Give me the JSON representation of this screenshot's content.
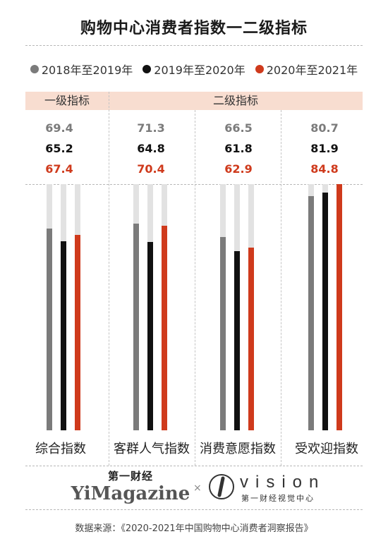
{
  "title": "购物中心消费者指数一二级指标",
  "legend": [
    {
      "label": "2018年至2019年",
      "color": "#7b7b7b"
    },
    {
      "label": "2019年至2020年",
      "color": "#111111"
    },
    {
      "label": "2020年至2021年",
      "color": "#cf3a1c"
    }
  ],
  "headers": {
    "level1": "一级指标",
    "level2": "二级指标"
  },
  "chart_data": {
    "type": "bar",
    "title": "购物中心消费者指数一二级指标",
    "categories": [
      "综合指数",
      "客群人气指数",
      "消费意愿指数",
      "受欢迎指数"
    ],
    "series": [
      {
        "name": "2018年至2019年",
        "color": "#7b7b7b",
        "values": [
          69.4,
          71.3,
          66.5,
          80.7
        ]
      },
      {
        "name": "2019年至2020年",
        "color": "#111111",
        "values": [
          65.2,
          64.8,
          61.8,
          81.9
        ]
      },
      {
        "name": "2020年至2021年",
        "color": "#cf3a1c",
        "values": [
          67.4,
          70.4,
          62.9,
          84.8
        ]
      }
    ],
    "value_labels": [
      [
        "69.4",
        "71.3",
        "66.5",
        "80.7"
      ],
      [
        "65.2",
        "64.8",
        "61.8",
        "81.9"
      ],
      [
        "67.4",
        "70.4",
        "62.9",
        "84.8"
      ]
    ],
    "ylim": [
      0,
      84.8
    ],
    "legend": "top"
  },
  "branding": {
    "logo_cn": "第一财经",
    "logo_en": "YiMagazine",
    "times": "×",
    "vision_word": "vision",
    "vision_sub": "第一财经视觉中心"
  },
  "source": "数据来源：《2020-2021年中国购物中心消费者洞察报告》"
}
